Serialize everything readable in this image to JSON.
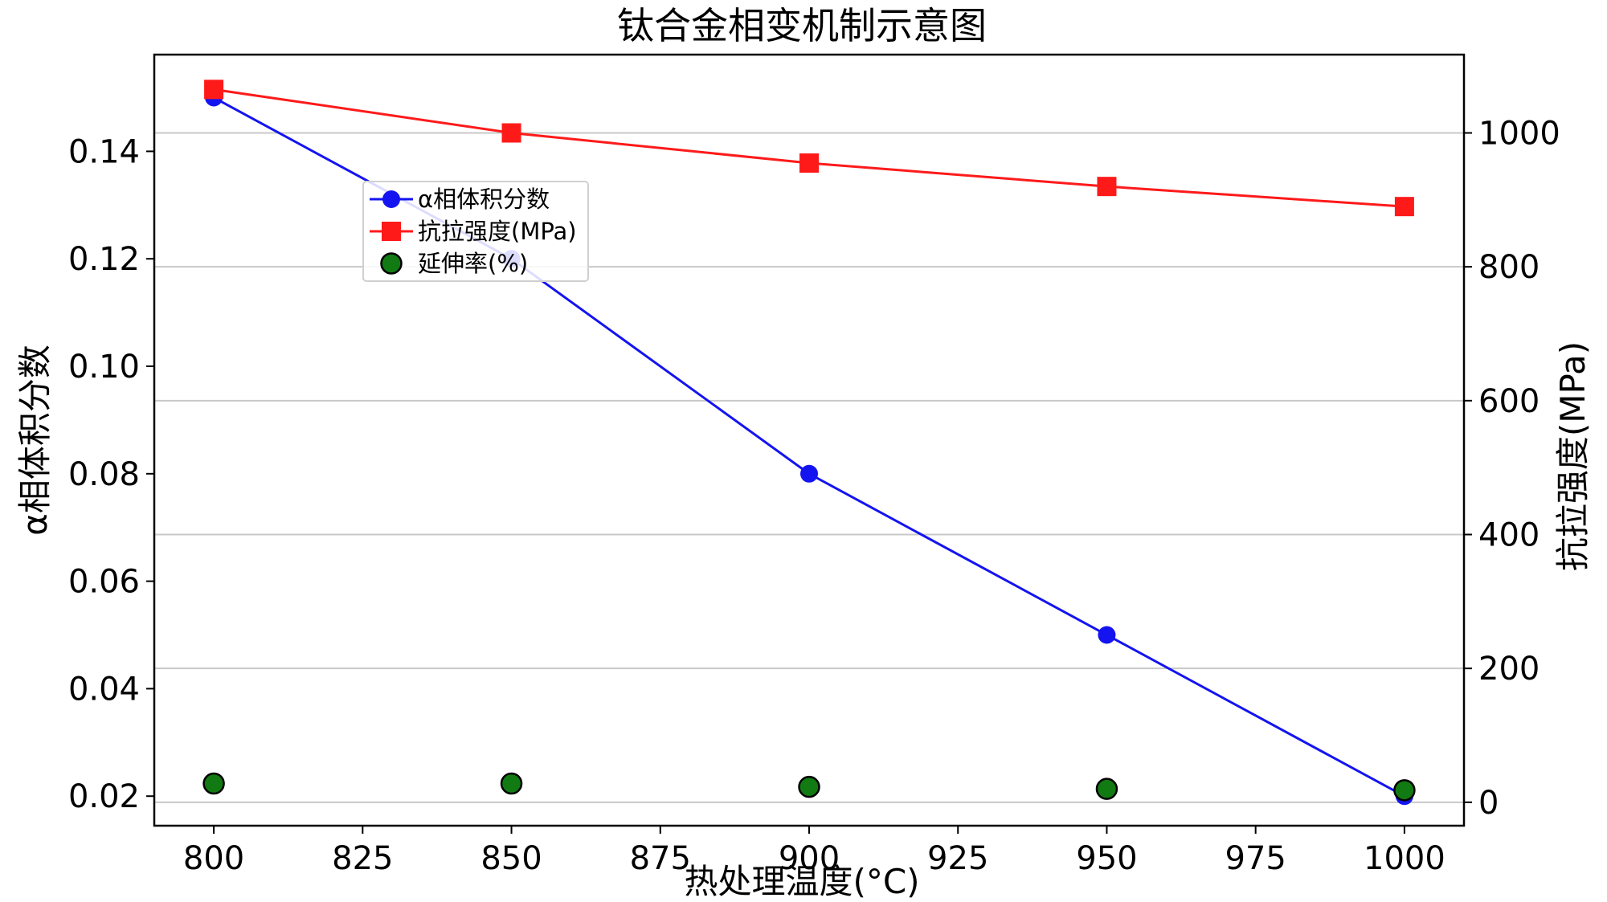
{
  "chart_data": {
    "type": "line",
    "title": "钛合金相变机制示意图",
    "xlabel": "热处理温度(°C)",
    "ylabel_left": "α相体积分数",
    "ylabel_right": "抗拉强度(MPa)",
    "x": [
      800,
      850,
      900,
      950,
      1000
    ],
    "xlim": [
      790,
      1010
    ],
    "xticks": [
      800,
      825,
      850,
      875,
      900,
      925,
      950,
      975,
      1000
    ],
    "ylim_left": [
      0.0145,
      0.158
    ],
    "yticks_left": [
      0.02,
      0.04,
      0.06,
      0.08,
      0.1,
      0.12,
      0.14
    ],
    "ytick_labels_left": [
      "0.02",
      "0.04",
      "0.06",
      "0.08",
      "0.10",
      "0.12",
      "0.14"
    ],
    "ylim_right": [
      -35,
      1117
    ],
    "yticks_right": [
      0,
      200,
      400,
      600,
      800,
      1000
    ],
    "right_grid": true,
    "legend_position": "upper-left-center",
    "series": [
      {
        "name": "α相体积分数",
        "axis": "left",
        "marker": "circle",
        "line": true,
        "color": "#1414f0",
        "values": [
          0.15,
          0.12,
          0.08,
          0.05,
          0.02
        ]
      },
      {
        "name": "抗拉强度(MPa)",
        "axis": "right",
        "marker": "square",
        "line": true,
        "color": "#ff1a1a",
        "values": [
          1065,
          1000,
          955,
          920,
          890
        ]
      },
      {
        "name": "延伸率(%)",
        "axis": "right",
        "marker": "circle",
        "line": false,
        "color": "#127a12",
        "values": [
          28,
          28,
          23,
          20,
          18
        ]
      }
    ]
  }
}
